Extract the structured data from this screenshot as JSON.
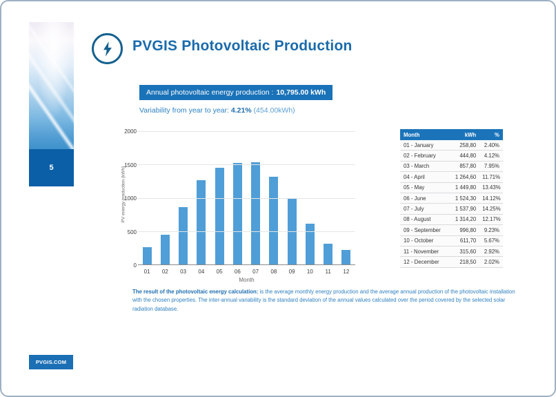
{
  "page": {
    "number": "5",
    "site_label": "PVGIS.COM"
  },
  "header": {
    "title": "PVGIS Photovoltaic Production",
    "icon": "lightning-bolt-icon"
  },
  "summary": {
    "annual_label": "Annual photovoltaic energy production :",
    "annual_value": "10,795.00 kWh",
    "variability_label": "Variability from year to year:",
    "variability_value": "4.21%",
    "variability_detail": "(454.00kWh)"
  },
  "chart_data": {
    "type": "bar",
    "title": "",
    "categories": [
      "01",
      "02",
      "03",
      "04",
      "05",
      "06",
      "07",
      "08",
      "09",
      "10",
      "11",
      "12"
    ],
    "values": [
      258.8,
      444.8,
      857.8,
      1264.6,
      1449.8,
      1524.3,
      1537.9,
      1314.2,
      996.8,
      611.7,
      315.6,
      218.5
    ],
    "xlabel": "Month",
    "ylabel": "PV energy production (kWh)",
    "ylim": [
      0,
      2000
    ],
    "yticks": [
      0,
      500,
      1000,
      1500,
      2000
    ],
    "grid": true,
    "legend": "none",
    "bar_color": "#4f9ed7"
  },
  "table": {
    "headers": [
      "Month",
      "kWh",
      "%"
    ],
    "rows": [
      [
        "01 - January",
        "258,80",
        "2.40%"
      ],
      [
        "02 - February",
        "444,80",
        "4.12%"
      ],
      [
        "03 - March",
        "857,80",
        "7.95%"
      ],
      [
        "04 - April",
        "1 264,60",
        "11.71%"
      ],
      [
        "05 - May",
        "1 449,80",
        "13.43%"
      ],
      [
        "06 - June",
        "1 524,30",
        "14.12%"
      ],
      [
        "07 - July",
        "1 537,90",
        "14.25%"
      ],
      [
        "08 - August",
        "1 314,20",
        "12.17%"
      ],
      [
        "09 - September",
        "996,80",
        "9.23%"
      ],
      [
        "10 - October",
        "611,70",
        "5.67%"
      ],
      [
        "11 - November",
        "315,60",
        "2.92%"
      ],
      [
        "12 - December",
        "218,50",
        "2.02%"
      ]
    ]
  },
  "footer_note": {
    "lead_bold": "The result of the photovoltaic energy calculation:",
    "body": " is the average monthly energy production and the average annual production of the photovoltaic installation with the chosen properties. The inter-annual variability is the standard deviation of the annual values calculated over the period covered by the selected solar radiation database."
  },
  "colors": {
    "brand_blue": "#1a6bab",
    "banner_bg": "#1a72b8",
    "bar_blue": "#4f9ed7",
    "table_header_bg": "#1b74ba",
    "page_box_bg": "#0b5fa7",
    "border": "#9db0c4"
  }
}
